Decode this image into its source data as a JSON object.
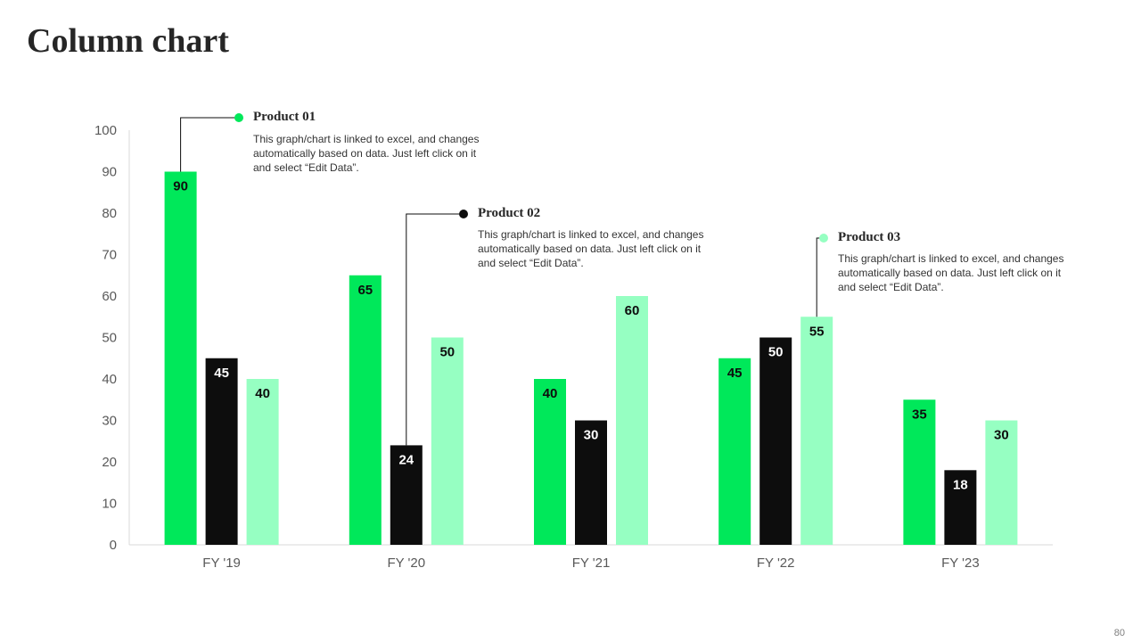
{
  "slide": {
    "title": "Column chart",
    "page_number": "80"
  },
  "annotations": [
    {
      "heading": "Product  01",
      "text": "This graph/chart is linked to excel, and changes automatically based on data. Just left click on it and select “Edit Data”."
    },
    {
      "heading": "Product  02",
      "text": "This graph/chart is linked to excel, and changes automatically based on data. Just left click on it and select “Edit Data”."
    },
    {
      "heading": "Product  03",
      "text": "This graph/chart is linked to excel, and changes automatically based on data. Just left click on it and select “Edit Data”."
    }
  ],
  "chart_data": {
    "type": "bar",
    "title": "",
    "xlabel": "",
    "ylabel": "",
    "categories": [
      "FY '19",
      "FY '20",
      "FY '21",
      "FY '22",
      "FY '23"
    ],
    "series": [
      {
        "values": [
          90,
          65,
          40,
          45,
          35
        ],
        "color": "#00E85A",
        "label_color": "#0D0D0D"
      },
      {
        "values": [
          45,
          24,
          30,
          50,
          18
        ],
        "color": "#0D0D0D",
        "label_color": "#FFFFFF"
      },
      {
        "values": [
          40,
          50,
          60,
          55,
          30
        ],
        "color": "#96FFC2",
        "label_color": "#0D0D0D"
      }
    ],
    "ylim": [
      0,
      100
    ],
    "yticks": [
      0,
      10,
      20,
      30,
      40,
      50,
      60,
      70,
      80,
      90,
      100
    ],
    "data_labels": true,
    "grid": false,
    "legend": "none",
    "callouts": [
      {
        "series": 0,
        "category": 0,
        "annotation": 0
      },
      {
        "series": 1,
        "category": 1,
        "annotation": 1
      },
      {
        "series": 2,
        "category": 3,
        "annotation": 2
      }
    ]
  }
}
